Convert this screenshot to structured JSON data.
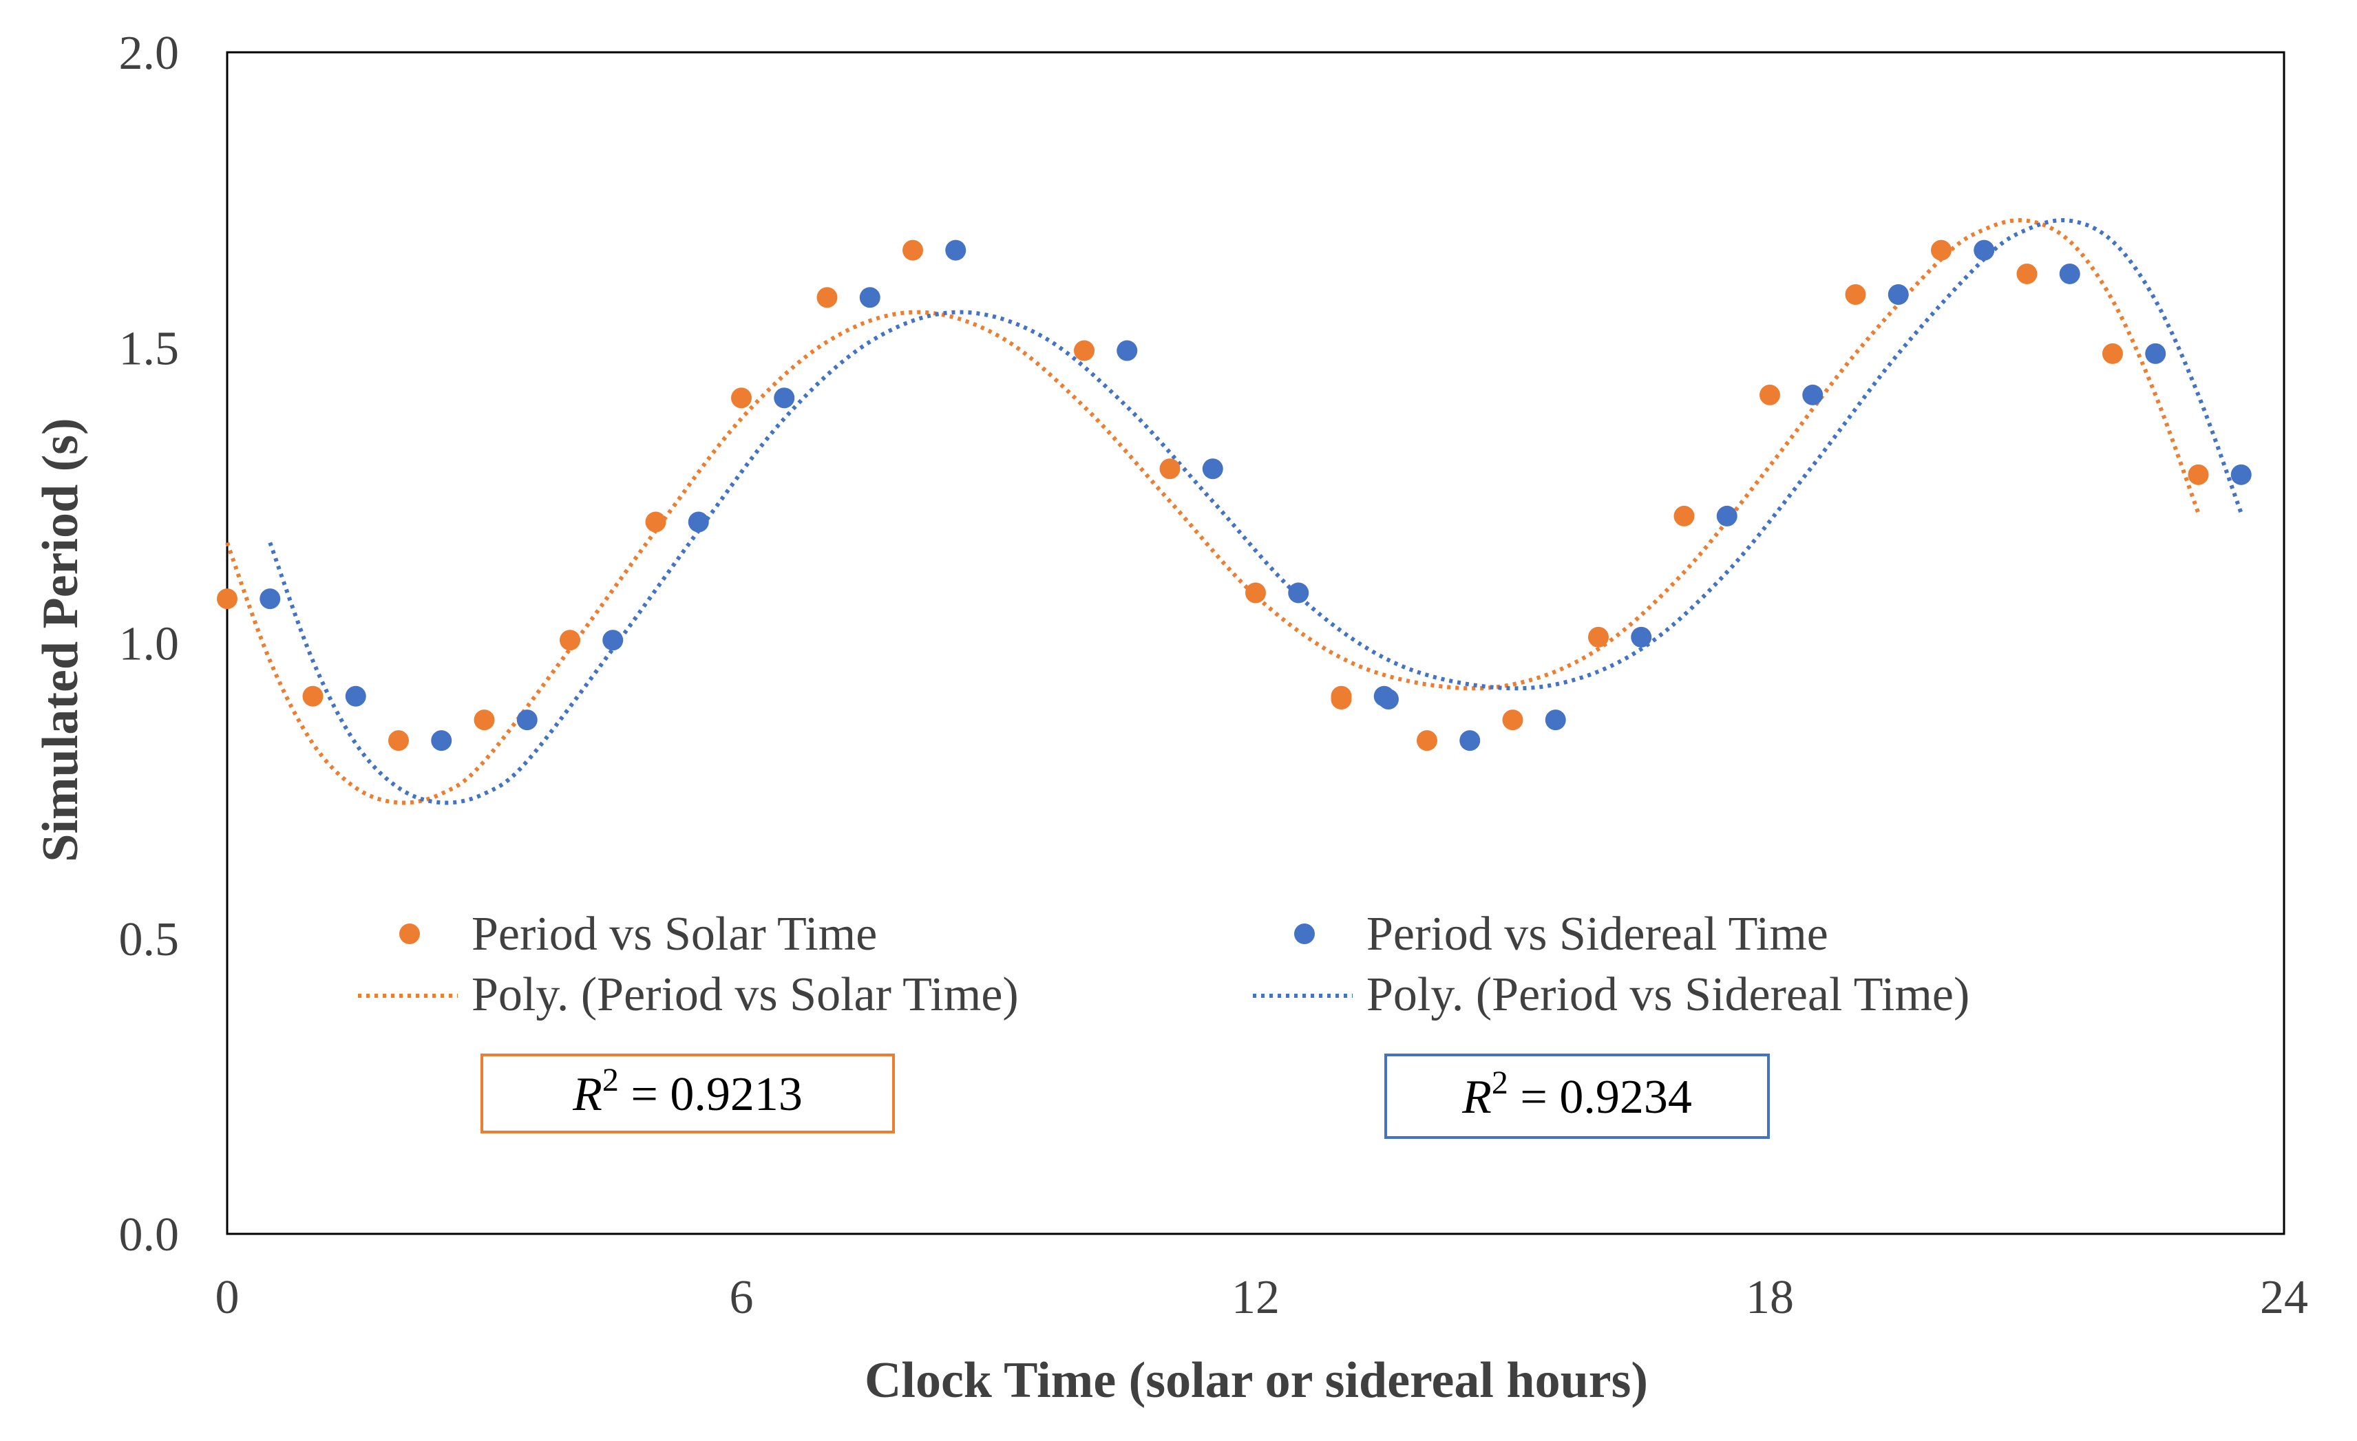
{
  "chart_data": {
    "type": "scatter",
    "title": "",
    "xlabel": "Clock Time (solar or sidereal hours)",
    "ylabel": "Simulated Period (s)",
    "xlim": [
      0,
      24
    ],
    "ylim": [
      0.0,
      2.0
    ],
    "x_ticks": [
      0,
      6,
      12,
      18,
      24
    ],
    "x_tick_labels": [
      "0",
      "6",
      "12",
      "18",
      "24"
    ],
    "y_ticks": [
      0.0,
      0.5,
      1.0,
      1.5,
      2.0
    ],
    "y_tick_labels": [
      "0.0",
      "0.5",
      "1.0",
      "1.5",
      "2.0"
    ],
    "grid": false,
    "legend_position": "lower-center",
    "series": [
      {
        "name": "Period vs Solar Time",
        "kind": "points",
        "color": "#ED7D31",
        "x": [
          0.0,
          1.0,
          2.0,
          3.0,
          4.0,
          5.0,
          6.0,
          7.0,
          8.0,
          10.0,
          11.0,
          12.0,
          13.0,
          13.0,
          14.0,
          15.0,
          16.0,
          17.0,
          18.0,
          19.0,
          20.0,
          21.0,
          22.0,
          23.0
        ],
        "values": [
          1.075,
          0.91,
          0.835,
          0.87,
          1.005,
          1.205,
          1.415,
          1.585,
          1.665,
          1.495,
          1.295,
          1.085,
          0.91,
          0.905,
          0.835,
          0.87,
          1.01,
          1.215,
          1.42,
          1.59,
          1.665,
          1.625,
          1.49,
          1.285
        ]
      },
      {
        "name": "Period vs Sidereal Time",
        "kind": "points",
        "color": "#4472C4",
        "x": [
          0.5,
          1.5,
          2.5,
          3.5,
          4.5,
          5.5,
          6.5,
          7.5,
          8.5,
          10.5,
          11.5,
          12.5,
          13.5,
          13.55,
          14.5,
          15.5,
          16.5,
          17.5,
          18.5,
          19.5,
          20.5,
          21.5,
          22.5,
          23.5
        ],
        "values": [
          1.075,
          0.91,
          0.835,
          0.87,
          1.005,
          1.205,
          1.415,
          1.585,
          1.665,
          1.495,
          1.295,
          1.085,
          0.91,
          0.905,
          0.835,
          0.87,
          1.01,
          1.215,
          1.42,
          1.59,
          1.665,
          1.625,
          1.49,
          1.285
        ]
      },
      {
        "name": "Poly. (Period vs Solar Time)",
        "kind": "trendline",
        "color": "#ED7D31",
        "x": [
          0.0,
          0.5,
          1.0,
          1.5,
          2.0,
          2.5,
          3.0,
          4.0,
          5.0,
          6.0,
          7.0,
          8.0,
          9.0,
          10.0,
          11.0,
          12.0,
          13.0,
          14.0,
          15.0,
          16.0,
          17.0,
          18.0,
          19.0,
          20.0,
          20.5,
          21.0,
          21.5,
          22.0,
          22.5,
          23.0
        ],
        "values": [
          1.17,
          0.97,
          0.83,
          0.755,
          0.73,
          0.745,
          0.8,
          0.99,
          1.19,
          1.38,
          1.51,
          1.56,
          1.52,
          1.4,
          1.24,
          1.08,
          0.975,
          0.93,
          0.93,
          0.99,
          1.12,
          1.3,
          1.49,
          1.65,
          1.7,
          1.715,
          1.68,
          1.58,
          1.42,
          1.22
        ]
      },
      {
        "name": "Poly. (Period vs Sidereal Time)",
        "kind": "trendline",
        "color": "#4472C4",
        "x": [
          0.5,
          1.0,
          1.5,
          2.0,
          2.5,
          3.0,
          3.5,
          4.5,
          5.5,
          6.5,
          7.5,
          8.5,
          9.5,
          10.5,
          11.5,
          12.5,
          13.5,
          14.5,
          15.5,
          16.5,
          17.5,
          18.5,
          19.5,
          20.5,
          21.0,
          21.5,
          22.0,
          22.5,
          23.0,
          23.5
        ],
        "values": [
          1.17,
          0.97,
          0.83,
          0.755,
          0.73,
          0.745,
          0.8,
          0.99,
          1.19,
          1.38,
          1.51,
          1.56,
          1.52,
          1.4,
          1.24,
          1.08,
          0.975,
          0.93,
          0.93,
          0.99,
          1.12,
          1.3,
          1.49,
          1.65,
          1.7,
          1.715,
          1.68,
          1.58,
          1.42,
          1.22
        ]
      }
    ],
    "annotations": [
      {
        "label": "R",
        "superscript": "2",
        "equals": "=",
        "value": "0.9213",
        "color": "#ED7D31"
      },
      {
        "label": "R",
        "superscript": "2",
        "equals": "=",
        "value": "0.9234",
        "color": "#4472C4"
      }
    ]
  }
}
